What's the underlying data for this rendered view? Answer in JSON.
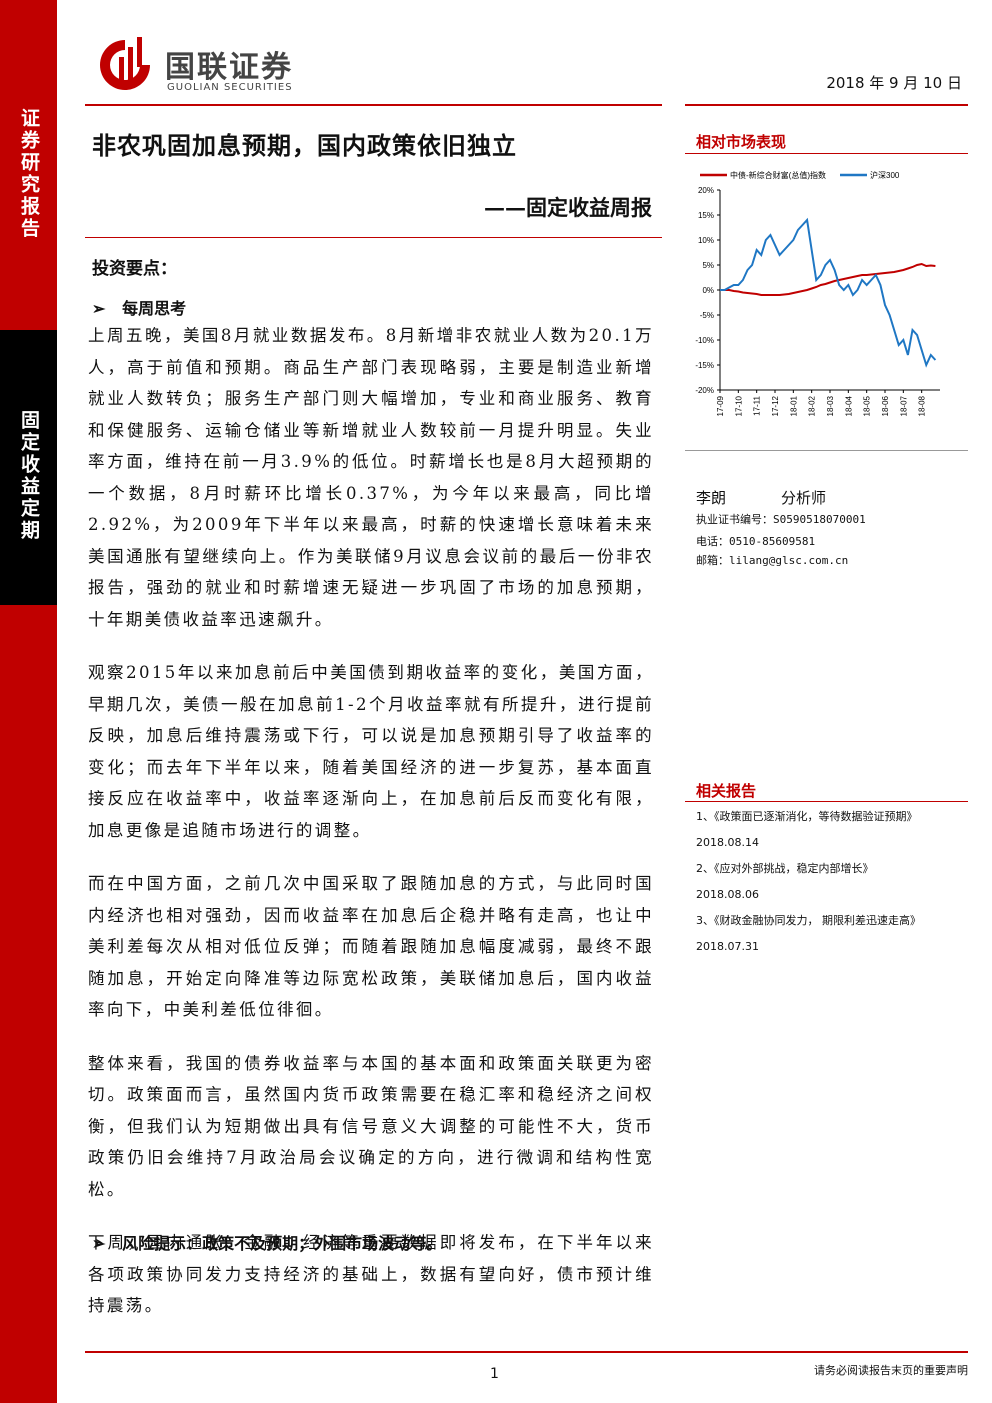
{
  "header": {
    "brand": "国联证券",
    "brand_en": "GUOLIAN SECURITIES",
    "date": "2018 年 9 月 10 日"
  },
  "side_tabs": [
    "证券研究报告",
    "固定收益定期"
  ],
  "title": "非农巩固加息预期，国内政策依旧独立",
  "subtitle": "——固定收益周报",
  "summary": {
    "heading": "投资要点：",
    "section": "每周思考",
    "paragraphs": [
      "上周五晚，美国8月就业数据发布。8月新增非农就业人数为20.1万人，高于前值和预期。商品生产部门表现略弱，主要是制造业新增就业人数转负；服务生产部门则大幅增加，专业和商业服务、教育和保健服务、运输仓储业等新增就业人数较前一月提升明显。失业率方面，维持在前一月3.9%的低位。时薪增长也是8月大超预期的一个数据，8月时薪环比增长0.37%，为今年以来最高，同比增2.92%，为2009年下半年以来最高，时薪的快速增长意味着未来美国通胀有望继续向上。作为美联储9月议息会议前的最后一份非农报告，强劲的就业和时薪增速无疑进一步巩固了市场的加息预期，十年期美债收益率迅速飙升。",
      "观察2015年以来加息前后中美国债到期收益率的变化，美国方面，早期几次，美债一般在加息前1-2个月收益率就有所提升，进行提前反映，加息后维持震荡或下行，可以说是加息预期引导了收益率的变化；而去年下半年以来，随着美国经济的进一步复苏，基本面直接反应在收益率中，收益率逐渐向上，在加息前后反而变化有限，加息更像是追随市场进行的调整。",
      "而在中国方面，之前几次中国采取了跟随加息的方式，与此同时国内经济也相对强劲，因而收益率在加息后企稳并略有走高，也让中美利差每次从相对低位反弹；而随着跟随加息幅度减弱，最终不跟随加息，开始定向降准等边际宽松政策，美联储加息后，国内收益率向下，中美利差低位徘徊。",
      "整体来看，我国的债券收益率与本国的基本面和政策面关联更为密切。政策面而言，虽然国内货币政策需要在稳汇率和稳经济之间权衡，但我们认为短期做出具有信号意义大调整的可能性不大，货币政策仍旧会维持7月政治局会议确定的方向，进行微调和结构性宽松。",
      "下周，国内通胀、金融、经济等重要数据即将发布，在下半年以来各项政策协同发力支持经济的基础上，数据有望向好，债市预计维持震荡。"
    ],
    "risk": "风险提示：政策不及预期；外围市场波动等。"
  },
  "market": {
    "heading": "相对市场表现"
  },
  "chart_data": {
    "type": "line",
    "categories": [
      "17-09",
      null,
      null,
      null,
      "17-10",
      null,
      null,
      null,
      "17-11",
      null,
      null,
      null,
      "17-12",
      null,
      null,
      null,
      "18-01",
      null,
      null,
      null,
      "18-02",
      null,
      null,
      null,
      "18-03",
      null,
      null,
      null,
      "18-04",
      null,
      null,
      null,
      "18-05",
      null,
      null,
      null,
      "18-06",
      null,
      null,
      null,
      "18-07",
      null,
      null,
      null,
      "18-08",
      null,
      null,
      null
    ],
    "series": [
      {
        "name": "中债-新综合财富(总值)指数",
        "color": "#c00000",
        "values": [
          0,
          0,
          0,
          -0.2,
          -0.3,
          -0.5,
          -0.6,
          -0.7,
          -0.8,
          -1,
          -1,
          -1,
          -1,
          -1,
          -0.9,
          -0.8,
          -0.6,
          -0.4,
          -0.2,
          0,
          0.3,
          0.6,
          1,
          1.2,
          1.5,
          1.8,
          2,
          2.2,
          2.4,
          2.6,
          2.8,
          3,
          3,
          3.1,
          3.2,
          3.3,
          3.4,
          3.5,
          3.6,
          3.8,
          4,
          4.3,
          4.6,
          5,
          5.2,
          4.8,
          4.9,
          4.8
        ]
      },
      {
        "name": "沪深300",
        "color": "#1f77c4",
        "values": [
          0,
          0,
          0.5,
          1,
          1,
          2,
          4,
          5,
          8,
          7,
          10,
          11,
          9,
          7,
          8,
          9,
          10,
          12,
          13,
          14,
          8,
          2,
          3,
          5,
          6,
          4,
          1,
          0,
          1,
          -1,
          0,
          2,
          1,
          2,
          3,
          1,
          -3,
          -5,
          -8,
          -11,
          -10,
          -13,
          -8,
          -9,
          -12,
          -15,
          -13,
          -14
        ]
      }
    ],
    "ylim": [
      -20,
      20
    ],
    "yticks": [
      {
        "value": 20,
        "label": "20%"
      },
      {
        "value": 15,
        "label": "15%"
      },
      {
        "value": 10,
        "label": "10%"
      },
      {
        "value": 5,
        "label": "5%"
      },
      {
        "value": 0,
        "label": "0%"
      },
      {
        "value": -5,
        "label": "-5%"
      },
      {
        "value": -10,
        "label": "-10%"
      },
      {
        "value": -15,
        "label": "-15%"
      },
      {
        "value": -20,
        "label": "-20%"
      }
    ],
    "legend": "top"
  },
  "analyst": {
    "name": "李朗",
    "role": "分析师",
    "cert": "执业证书编号：S0590518070001",
    "phone": "电话：0510-85609581",
    "email": "邮箱：lilang@glsc.com.cn"
  },
  "related": {
    "heading": "相关报告",
    "items": [
      {
        "title": "1、《政策面已逐渐消化，等待数据验证预期》",
        "date": "2018.08.14"
      },
      {
        "title": "2、《应对外部挑战，稳定内部增长》",
        "date": "2018.08.06"
      },
      {
        "title": "3、《财政金融协同发力， 期限利差迅速走高》",
        "date": "2018.07.31"
      }
    ]
  },
  "footer": {
    "page": "1",
    "note": "请务必阅读报告末页的重要声明"
  }
}
